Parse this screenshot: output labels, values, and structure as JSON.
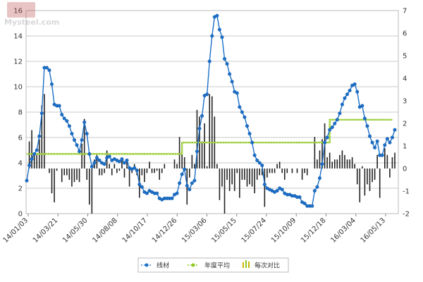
{
  "watermark": "Mysteel.com",
  "chart_data": {
    "type": "line",
    "title": "",
    "grid": true,
    "legend_position": "bottom",
    "x_tick_labels": [
      "14/01/03",
      "14/03/21",
      "14/05/30",
      "14/08/08",
      "14/10/17",
      "14/12/26",
      "15/03/06",
      "15/05/15",
      "15/07/24",
      "15/10/09",
      "15/12/18",
      "16/03/04",
      "16/05/13"
    ],
    "y_left": {
      "range": [
        0,
        16
      ],
      "ticks": [
        "0",
        "2",
        "4",
        "6",
        "8",
        "10",
        "12",
        "14",
        "16"
      ]
    },
    "y_right": {
      "range": [
        -2,
        7
      ],
      "ticks": [
        "-2",
        "-1",
        "0",
        "1",
        "2",
        "3",
        "4",
        "5",
        "6",
        "7"
      ]
    },
    "series": [
      {
        "name": "线材",
        "axis": "left",
        "style": "line-markers",
        "color": "#1b6fc8",
        "values": [
          2.6,
          3.8,
          4.3,
          4.7,
          5.0,
          6.1,
          7.9,
          11.5,
          11.5,
          11.3,
          10.2,
          8.6,
          8.5,
          8.5,
          7.8,
          7.5,
          7.3,
          6.9,
          6.3,
          5.8,
          5.4,
          4.9,
          5.8,
          7.2,
          6.3,
          4.7,
          3.7,
          4.0,
          4.4,
          4.2,
          4.0,
          3.9,
          4.4,
          4.5,
          4.2,
          4.3,
          4.2,
          4.1,
          4.3,
          4.0,
          4.2,
          3.6,
          3.5,
          3.6,
          3.4,
          2.3,
          2.1,
          1.7,
          1.6,
          1.8,
          1.7,
          1.6,
          1.6,
          1.2,
          1.1,
          1.2,
          1.2,
          1.2,
          1.2,
          1.5,
          1.6,
          2.4,
          3.1,
          3.5,
          2.2,
          1.9,
          2.4,
          2.6,
          4.9,
          6.7,
          7.7,
          9.3,
          9.4,
          12.0,
          14.0,
          15.5,
          15.6,
          14.5,
          13.9,
          12.2,
          11.8,
          11.0,
          10.4,
          9.6,
          9.5,
          8.4,
          8.0,
          7.6,
          6.9,
          6.3,
          5.6,
          4.6,
          4.2,
          4.0,
          3.8,
          2.3,
          2.0,
          1.9,
          1.8,
          1.7,
          1.8,
          2.0,
          1.9,
          1.6,
          1.5,
          1.5,
          1.4,
          1.4,
          1.3,
          1.3,
          0.9,
          0.8,
          0.6,
          0.6,
          0.6,
          1.8,
          2.1,
          2.8,
          3.9,
          5.6,
          6.0,
          6.6,
          6.8,
          7.1,
          7.4,
          7.9,
          8.6,
          9.1,
          9.4,
          9.7,
          10.1,
          10.2,
          9.6,
          8.4,
          8.5,
          7.5,
          6.9,
          6.1,
          5.6,
          5.2,
          5.7,
          4.6,
          4.6,
          5.4,
          5.9,
          5.6,
          6.0,
          6.6
        ]
      },
      {
        "name": "年度平均",
        "axis": "left",
        "style": "step-line",
        "color": "#8cc81e",
        "values": [
          4.7,
          4.7,
          4.7,
          4.7,
          4.7,
          4.7,
          4.7,
          4.7,
          4.7,
          4.7,
          4.7,
          4.7,
          4.7,
          4.7,
          4.7,
          4.7,
          4.7,
          4.7,
          4.7,
          4.7,
          4.7,
          4.7,
          4.7,
          4.7,
          4.7,
          4.7,
          4.7,
          4.7,
          4.7,
          4.7,
          4.7,
          4.7,
          4.7,
          4.7,
          4.7,
          4.7,
          4.7,
          4.7,
          4.7,
          4.7,
          4.7,
          4.7,
          4.7,
          4.7,
          4.7,
          4.7,
          4.7,
          4.7,
          4.7,
          4.7,
          4.7,
          4.7,
          4.7,
          4.7,
          4.7,
          4.7,
          4.7,
          4.7,
          4.7,
          4.7,
          4.7,
          4.7,
          5.6,
          5.6,
          5.6,
          5.6,
          5.6,
          5.6,
          5.6,
          5.6,
          5.6,
          5.6,
          5.6,
          5.6,
          5.6,
          5.6,
          5.6,
          5.6,
          5.6,
          5.6,
          5.6,
          5.6,
          5.6,
          5.6,
          5.6,
          5.6,
          5.6,
          5.6,
          5.6,
          5.6,
          5.6,
          5.6,
          5.6,
          5.6,
          5.6,
          5.6,
          5.6,
          5.6,
          5.6,
          5.6,
          5.6,
          5.6,
          5.6,
          5.6,
          5.6,
          5.6,
          5.6,
          5.6,
          5.6,
          5.6,
          5.6,
          5.6,
          5.6,
          5.6,
          5.6,
          5.6,
          5.6,
          5.6,
          5.6,
          5.6,
          5.6,
          7.4,
          7.4,
          7.4,
          7.4,
          7.4,
          7.4,
          7.4,
          7.4,
          7.4,
          7.4,
          7.4,
          7.4,
          7.4,
          7.4,
          7.4,
          7.4,
          7.4,
          7.4,
          7.4,
          7.4,
          7.4,
          7.4,
          7.4,
          7.4,
          7.4,
          7.4
        ]
      },
      {
        "name": "每次对比",
        "axis": "right",
        "style": "bar",
        "color": "#222222",
        "values": [
          0,
          1.2,
          1.7,
          0.6,
          0.6,
          1.3,
          2.8,
          3.3,
          0,
          -0.2,
          -1.1,
          -1.5,
          -0.1,
          0,
          -0.6,
          -0.3,
          -0.3,
          -0.5,
          -0.8,
          -0.6,
          -0.5,
          -0.6,
          1.1,
          2.2,
          -0.5,
          -1.6,
          -2.0,
          0.4,
          0.6,
          -0.3,
          -0.3,
          -0.2,
          0.8,
          0.2,
          -0.3,
          0.2,
          -0.2,
          -0.1,
          0.4,
          -0.4,
          0.3,
          -0.8,
          -0.2,
          0.2,
          -0.3,
          -1.3,
          -0.3,
          -0.6,
          -0.2,
          0.3,
          -0.2,
          -0.2,
          -0.1,
          -0.5,
          -0.2,
          0.2,
          0,
          0,
          0,
          0.4,
          0.2,
          1.4,
          0.9,
          0.5,
          -1.6,
          -0.4,
          0.6,
          0.2,
          2.6,
          2.3,
          1.2,
          2.0,
          0.1,
          3.3,
          3.2,
          2.3,
          0.2,
          -1.4,
          -0.8,
          -2.0,
          -0.5,
          -1.0,
          -0.7,
          -1.0,
          -0.2,
          -1.3,
          -0.5,
          -0.5,
          -0.8,
          -0.7,
          -0.8,
          -1.1,
          -0.5,
          -0.3,
          -0.3,
          -1.7,
          -0.4,
          -0.2,
          -0.2,
          -0.2,
          0.2,
          0.3,
          -0.2,
          -0.5,
          -0.2,
          0,
          -0.2,
          0,
          -0.2,
          0,
          -0.5,
          -0.2,
          -0.3,
          0,
          0,
          1.4,
          0.4,
          0.8,
          1.3,
          2.0,
          0.5,
          0.7,
          0.3,
          0.4,
          0.4,
          0.6,
          0.8,
          0.6,
          0.4,
          0.4,
          0.5,
          0.2,
          -0.7,
          -1.5,
          0.1,
          -1.2,
          -0.7,
          -1.0,
          -0.6,
          -0.5,
          0.6,
          -1.3,
          0,
          0.9,
          0.6,
          -0.4,
          0.5,
          0.7
        ]
      }
    ]
  }
}
